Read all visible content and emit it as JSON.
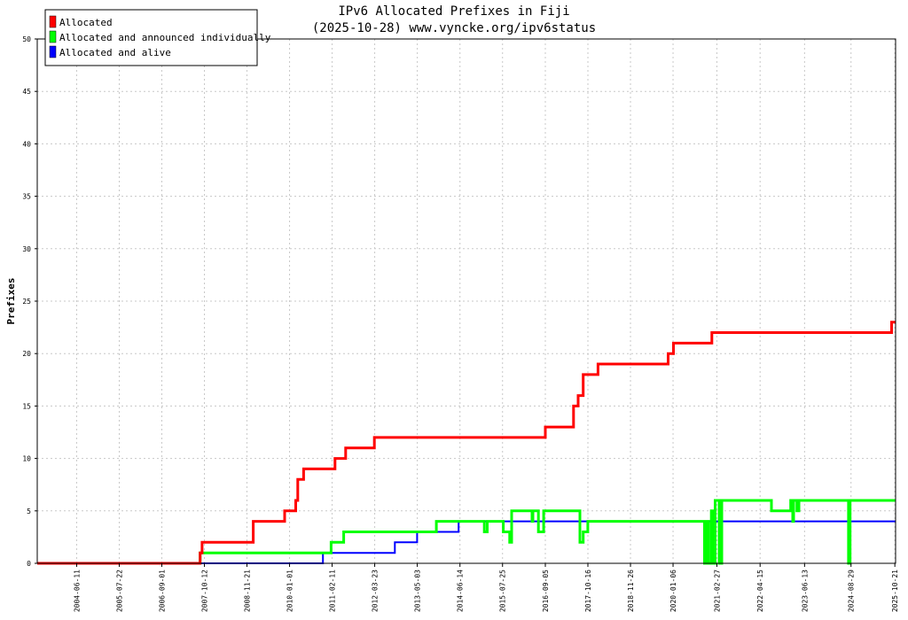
{
  "chart_data": {
    "type": "line",
    "title": "IPv6 Allocated Prefixes in Fiji",
    "subtitle": "(2025-10-28) www.vyncke.org/ipv6status",
    "ylabel": "Prefixes",
    "xlabel": "",
    "ylim": [
      0,
      50
    ],
    "yticks": [
      0,
      5,
      10,
      15,
      20,
      25,
      30,
      35,
      40,
      45,
      50
    ],
    "xlim": [
      "2003-06-01",
      "2025-10-28"
    ],
    "xticks": [
      "2004-06-11",
      "2005-07-22",
      "2006-09-01",
      "2007-10-12",
      "2008-11-21",
      "2010-01-01",
      "2011-02-11",
      "2012-03-23",
      "2013-05-03",
      "2014-06-14",
      "2015-07-25",
      "2016-09-05",
      "2017-10-16",
      "2018-11-26",
      "2020-01-06",
      "2021-02-27",
      "2022-04-15",
      "2023-06-13",
      "2024-08-29",
      "2025-10-21"
    ],
    "grid": true,
    "legend_position": "top-left",
    "series": [
      {
        "name": "Allocated",
        "color": "#ff0000",
        "points": [
          [
            "2003-06-01",
            0
          ],
          [
            "2007-09-01",
            0
          ],
          [
            "2007-09-01",
            1
          ],
          [
            "2007-09-20",
            1
          ],
          [
            "2007-09-20",
            2
          ],
          [
            "2009-01-20",
            2
          ],
          [
            "2009-01-20",
            4
          ],
          [
            "2009-11-15",
            4
          ],
          [
            "2009-11-15",
            5
          ],
          [
            "2010-03-01",
            5
          ],
          [
            "2010-03-01",
            6
          ],
          [
            "2010-03-20",
            6
          ],
          [
            "2010-03-20",
            8
          ],
          [
            "2010-05-15",
            8
          ],
          [
            "2010-05-15",
            9
          ],
          [
            "2011-03-10",
            9
          ],
          [
            "2011-03-10",
            10
          ],
          [
            "2011-06-20",
            10
          ],
          [
            "2011-06-20",
            11
          ],
          [
            "2012-03-20",
            11
          ],
          [
            "2012-03-20",
            12
          ],
          [
            "2016-09-05",
            12
          ],
          [
            "2016-09-05",
            13
          ],
          [
            "2017-06-01",
            13
          ],
          [
            "2017-06-01",
            15
          ],
          [
            "2017-07-15",
            15
          ],
          [
            "2017-07-15",
            16
          ],
          [
            "2017-09-01",
            16
          ],
          [
            "2017-09-01",
            18
          ],
          [
            "2018-01-20",
            18
          ],
          [
            "2018-01-20",
            19
          ],
          [
            "2019-11-20",
            19
          ],
          [
            "2019-11-20",
            20
          ],
          [
            "2020-01-10",
            20
          ],
          [
            "2020-01-10",
            21
          ],
          [
            "2021-01-10",
            21
          ],
          [
            "2021-01-10",
            22
          ],
          [
            "2025-09-20",
            22
          ],
          [
            "2025-09-20",
            23
          ],
          [
            "2025-10-28",
            23
          ]
        ]
      },
      {
        "name": "Allocated and announced individually",
        "color": "#00ff00",
        "points": [
          [
            "2003-06-01",
            0
          ],
          [
            "2007-09-01",
            0
          ],
          [
            "2007-09-01",
            1
          ],
          [
            "2011-02-01",
            1
          ],
          [
            "2011-02-01",
            2
          ],
          [
            "2011-06-01",
            2
          ],
          [
            "2011-06-01",
            3
          ],
          [
            "2013-11-01",
            3
          ],
          [
            "2013-11-01",
            4
          ],
          [
            "2015-02-01",
            4
          ],
          [
            "2015-02-01",
            3
          ],
          [
            "2015-03-01",
            3
          ],
          [
            "2015-03-01",
            4
          ],
          [
            "2015-08-01",
            4
          ],
          [
            "2015-08-01",
            3
          ],
          [
            "2015-10-01",
            3
          ],
          [
            "2015-10-01",
            2
          ],
          [
            "2015-10-20",
            2
          ],
          [
            "2015-10-20",
            5
          ],
          [
            "2016-05-01",
            5
          ],
          [
            "2016-05-01",
            4
          ],
          [
            "2016-05-10",
            4
          ],
          [
            "2016-05-10",
            5
          ],
          [
            "2016-07-01",
            5
          ],
          [
            "2016-07-01",
            3
          ],
          [
            "2016-08-20",
            3
          ],
          [
            "2016-08-20",
            5
          ],
          [
            "2017-08-01",
            5
          ],
          [
            "2017-08-01",
            2
          ],
          [
            "2017-09-01",
            2
          ],
          [
            "2017-09-01",
            3
          ],
          [
            "2017-10-15",
            3
          ],
          [
            "2017-10-15",
            4
          ],
          [
            "2020-11-01",
            4
          ],
          [
            "2020-11-01",
            0
          ],
          [
            "2020-11-20",
            0
          ],
          [
            "2020-11-20",
            4
          ],
          [
            "2020-12-10",
            4
          ],
          [
            "2020-12-10",
            0
          ],
          [
            "2021-01-05",
            0
          ],
          [
            "2021-01-05",
            5
          ],
          [
            "2021-01-20",
            5
          ],
          [
            "2021-01-20",
            0
          ],
          [
            "2021-02-10",
            0
          ],
          [
            "2021-02-10",
            6
          ],
          [
            "2021-03-20",
            6
          ],
          [
            "2021-03-20",
            0
          ],
          [
            "2021-04-15",
            0
          ],
          [
            "2021-04-15",
            6
          ],
          [
            "2022-08-01",
            6
          ],
          [
            "2022-08-01",
            5
          ],
          [
            "2023-02-01",
            5
          ],
          [
            "2023-02-01",
            6
          ],
          [
            "2023-02-20",
            6
          ],
          [
            "2023-02-20",
            4
          ],
          [
            "2023-03-01",
            4
          ],
          [
            "2023-03-01",
            6
          ],
          [
            "2023-04-01",
            6
          ],
          [
            "2023-04-01",
            5
          ],
          [
            "2023-04-20",
            5
          ],
          [
            "2023-04-20",
            6
          ],
          [
            "2024-08-05",
            6
          ],
          [
            "2024-08-05",
            0
          ],
          [
            "2024-08-20",
            0
          ],
          [
            "2024-08-20",
            6
          ],
          [
            "2025-10-28",
            6
          ]
        ]
      },
      {
        "name": "Allocated and alive",
        "color": "#0000ff",
        "points": [
          [
            "2003-06-01",
            0
          ],
          [
            "2010-11-15",
            0
          ],
          [
            "2010-11-15",
            1
          ],
          [
            "2012-10-01",
            1
          ],
          [
            "2012-10-01",
            2
          ],
          [
            "2013-05-01",
            2
          ],
          [
            "2013-05-01",
            3
          ],
          [
            "2014-06-01",
            3
          ],
          [
            "2014-06-01",
            4
          ],
          [
            "2025-10-28",
            4
          ]
        ]
      }
    ]
  }
}
